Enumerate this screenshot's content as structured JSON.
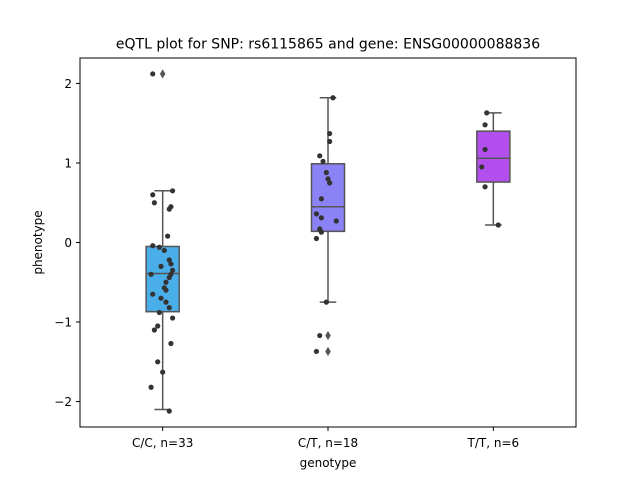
{
  "chart_data": {
    "type": "box",
    "title": "eQTL plot for SNP: rs6115865 and gene: ENSG00000088836",
    "xlabel": "genotype",
    "ylabel": "phenotype",
    "ylim": [
      -2.32,
      2.32
    ],
    "yticks": [
      -2,
      -1,
      0,
      1,
      2
    ],
    "yticklabels": [
      "−2",
      "−1",
      "0",
      "1",
      "2"
    ],
    "grid": false,
    "legend": "none",
    "categories": [
      "C/C, n=33",
      "C/T, n=18",
      "T/T, n=6"
    ],
    "colors": [
      "#4aaee9",
      "#8b82f5",
      "#b34fee"
    ],
    "line_color": "#555555",
    "point_color": "#333333",
    "boxes": [
      {
        "q1": -0.87,
        "median": -0.39,
        "q3": -0.05,
        "whisker_low": -2.1,
        "whisker_high": 0.65,
        "outliers": [
          2.12
        ]
      },
      {
        "q1": 0.14,
        "median": 0.45,
        "q3": 0.99,
        "whisker_low": -0.75,
        "whisker_high": 1.82,
        "outliers": [
          -1.17,
          -1.37
        ]
      },
      {
        "q1": 0.76,
        "median": 1.06,
        "q3": 1.4,
        "whisker_low": 0.22,
        "whisker_high": 1.63,
        "outliers": []
      }
    ],
    "points": [
      [
        {
          "dx": -0.06,
          "y": 2.12
        },
        {
          "dx": -0.06,
          "y": 0.6
        },
        {
          "dx": -0.05,
          "y": 0.5
        },
        {
          "dx": 0.06,
          "y": 0.65
        },
        {
          "dx": 0.04,
          "y": 0.42
        },
        {
          "dx": 0.05,
          "y": 0.45
        },
        {
          "dx": 0.03,
          "y": 0.08
        },
        {
          "dx": -0.06,
          "y": -0.04
        },
        {
          "dx": -0.02,
          "y": -0.06
        },
        {
          "dx": 0.01,
          "y": -0.1
        },
        {
          "dx": 0.04,
          "y": -0.22
        },
        {
          "dx": 0.05,
          "y": -0.27
        },
        {
          "dx": 0.06,
          "y": -0.35
        },
        {
          "dx": 0.05,
          "y": -0.4
        },
        {
          "dx": 0.04,
          "y": -0.44
        },
        {
          "dx": -0.01,
          "y": -0.3
        },
        {
          "dx": 0.02,
          "y": -0.5
        },
        {
          "dx": 0.01,
          "y": -0.57
        },
        {
          "dx": 0.02,
          "y": -0.6
        },
        {
          "dx": -0.07,
          "y": -0.4
        },
        {
          "dx": -0.06,
          "y": -0.65
        },
        {
          "dx": -0.01,
          "y": -0.7
        },
        {
          "dx": 0.02,
          "y": -0.75
        },
        {
          "dx": 0.04,
          "y": -0.82
        },
        {
          "dx": -0.02,
          "y": -0.88
        },
        {
          "dx": 0.06,
          "y": -0.95
        },
        {
          "dx": -0.05,
          "y": -1.1
        },
        {
          "dx": -0.03,
          "y": -1.05
        },
        {
          "dx": 0.05,
          "y": -1.27
        },
        {
          "dx": -0.03,
          "y": -1.5
        },
        {
          "dx": 0.0,
          "y": -1.63
        },
        {
          "dx": -0.07,
          "y": -1.82
        },
        {
          "dx": 0.04,
          "y": -2.12
        }
      ],
      [
        {
          "dx": 0.03,
          "y": 1.82
        },
        {
          "dx": 0.01,
          "y": 1.37
        },
        {
          "dx": 0.01,
          "y": 1.27
        },
        {
          "dx": -0.05,
          "y": 1.09
        },
        {
          "dx": -0.03,
          "y": 1.02
        },
        {
          "dx": -0.01,
          "y": 0.88
        },
        {
          "dx": 0.0,
          "y": 0.8
        },
        {
          "dx": 0.01,
          "y": 0.75
        },
        {
          "dx": -0.04,
          "y": 0.55
        },
        {
          "dx": -0.07,
          "y": 0.36
        },
        {
          "dx": -0.04,
          "y": 0.31
        },
        {
          "dx": 0.05,
          "y": 0.27
        },
        {
          "dx": -0.05,
          "y": 0.17
        },
        {
          "dx": -0.04,
          "y": 0.13
        },
        {
          "dx": -0.07,
          "y": 0.05
        },
        {
          "dx": -0.01,
          "y": -0.75
        },
        {
          "dx": -0.05,
          "y": -1.17
        },
        {
          "dx": -0.07,
          "y": -1.37
        }
      ],
      [
        {
          "dx": -0.04,
          "y": 1.63
        },
        {
          "dx": -0.05,
          "y": 1.48
        },
        {
          "dx": -0.05,
          "y": 1.17
        },
        {
          "dx": -0.07,
          "y": 0.95
        },
        {
          "dx": -0.05,
          "y": 0.7
        },
        {
          "dx": 0.03,
          "y": 0.22
        }
      ]
    ]
  }
}
